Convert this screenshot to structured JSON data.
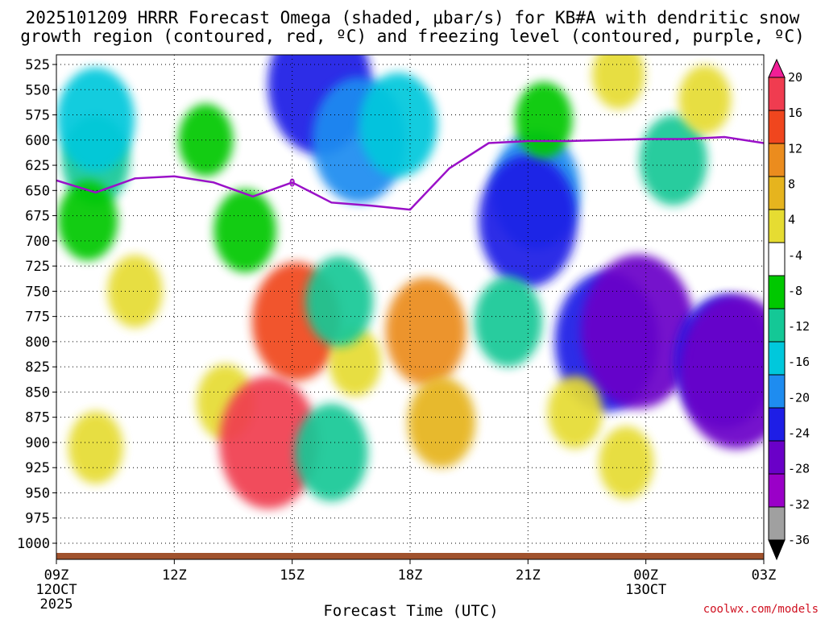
{
  "chart_data": {
    "type": "heatmap",
    "title_line1": "2025101209 HRRR Forecast Omega (shaded, μbar/s) for KB#A with dendritic snow",
    "title_line2": "growth region (contoured, red, ºC) and freezing level (contoured, purple, ºC)",
    "xlabel": "Forecast Time (UTC)",
    "credit": "coolwx.com/models",
    "y_axis": {
      "type": "pressure_mb",
      "ylim": [
        1000,
        525
      ],
      "ticks": [
        "525",
        "550",
        "575",
        "600",
        "625",
        "650",
        "675",
        "700",
        "725",
        "750",
        "775",
        "800",
        "825",
        "850",
        "875",
        "900",
        "925",
        "950",
        "975",
        "1000"
      ]
    },
    "x_axis": {
      "xlim_hours": [
        0,
        18
      ],
      "ticks": [
        {
          "hour": 0,
          "label": "09Z",
          "sub1": "12OCT",
          "sub2": "2025"
        },
        {
          "hour": 3,
          "label": "12Z",
          "sub1": "",
          "sub2": ""
        },
        {
          "hour": 6,
          "label": "15Z",
          "sub1": "",
          "sub2": ""
        },
        {
          "hour": 9,
          "label": "18Z",
          "sub1": "",
          "sub2": ""
        },
        {
          "hour": 12,
          "label": "21Z",
          "sub1": "",
          "sub2": ""
        },
        {
          "hour": 15,
          "label": "00Z",
          "sub1": "13OCT",
          "sub2": ""
        },
        {
          "hour": 18,
          "label": "03Z",
          "sub1": "",
          "sub2": ""
        }
      ]
    },
    "colorbar": {
      "levels": [
        -36,
        -32,
        -28,
        -24,
        -20,
        -16,
        -12,
        -8,
        -4,
        4,
        8,
        12,
        16,
        20
      ],
      "labels": [
        "20",
        "16",
        "12",
        "8",
        "4",
        "-4",
        "-8",
        "-12",
        "-16",
        "-20",
        "-24",
        "-28",
        "-32",
        "-36"
      ],
      "colors": [
        "#000000",
        "#a0a0a0",
        "#9a00c8",
        "#6a00c8",
        "#1e1ee6",
        "#1e8cf0",
        "#00c8dc",
        "#14c896",
        "#00c800",
        "#ffffff",
        "#e6dc32",
        "#e6b41e",
        "#eb8c1e",
        "#f0461e",
        "#f03c50",
        "#f01e96"
      ]
    },
    "freezing_level": {
      "label": "0",
      "points": [
        {
          "hour": 0.0,
          "p": 640
        },
        {
          "hour": 1.0,
          "p": 652
        },
        {
          "hour": 2.0,
          "p": 638
        },
        {
          "hour": 3.0,
          "p": 636
        },
        {
          "hour": 4.0,
          "p": 642
        },
        {
          "hour": 5.0,
          "p": 656
        },
        {
          "hour": 6.0,
          "p": 642
        },
        {
          "hour": 7.0,
          "p": 662
        },
        {
          "hour": 8.0,
          "p": 665
        },
        {
          "hour": 9.0,
          "p": 669
        },
        {
          "hour": 10.0,
          "p": 628
        },
        {
          "hour": 11.0,
          "p": 603
        },
        {
          "hour": 12.0,
          "p": 601
        },
        {
          "hour": 13.0,
          "p": 601
        },
        {
          "hour": 14.0,
          "p": 600
        },
        {
          "hour": 15.0,
          "p": 599
        },
        {
          "hour": 16.0,
          "p": 599
        },
        {
          "hour": 17.0,
          "p": 597
        },
        {
          "hour": 18.0,
          "p": 603
        }
      ]
    },
    "omega_regions": [
      {
        "hour": 1.0,
        "p": 620,
        "value": -10
      },
      {
        "hour": 1.0,
        "p": 580,
        "value": -14
      },
      {
        "hour": 0.8,
        "p": 680,
        "value": -7
      },
      {
        "hour": 1.0,
        "p": 905,
        "value": 5
      },
      {
        "hour": 2.0,
        "p": 750,
        "value": 5
      },
      {
        "hour": 4.8,
        "p": 690,
        "value": -8
      },
      {
        "hour": 3.8,
        "p": 600,
        "value": -5
      },
      {
        "hour": 4.3,
        "p": 860,
        "value": 6
      },
      {
        "hour": 6.1,
        "p": 780,
        "value": 18
      },
      {
        "hour": 5.4,
        "p": 900,
        "value": 22
      },
      {
        "hour": 6.7,
        "p": 545,
        "value": -24
      },
      {
        "hour": 7.7,
        "p": 600,
        "value": -20
      },
      {
        "hour": 8.7,
        "p": 585,
        "value": -14
      },
      {
        "hour": 7.6,
        "p": 820,
        "value": 4
      },
      {
        "hour": 7.2,
        "p": 760,
        "value": -10
      },
      {
        "hour": 7.0,
        "p": 910,
        "value": -12
      },
      {
        "hour": 9.4,
        "p": 790,
        "value": 15
      },
      {
        "hour": 9.8,
        "p": 880,
        "value": 10
      },
      {
        "hour": 12.2,
        "p": 650,
        "value": -18
      },
      {
        "hour": 12.0,
        "p": 680,
        "value": -22
      },
      {
        "hour": 11.5,
        "p": 780,
        "value": -10
      },
      {
        "hour": 14.0,
        "p": 800,
        "value": -24
      },
      {
        "hour": 14.8,
        "p": 790,
        "value": -28
      },
      {
        "hour": 17.0,
        "p": 820,
        "value": -22
      },
      {
        "hour": 17.3,
        "p": 830,
        "value": -28
      },
      {
        "hour": 15.7,
        "p": 620,
        "value": -10
      },
      {
        "hour": 12.4,
        "p": 580,
        "value": -6
      },
      {
        "hour": 14.5,
        "p": 920,
        "value": 5
      },
      {
        "hour": 13.2,
        "p": 870,
        "value": 5
      },
      {
        "hour": 16.5,
        "p": 560,
        "value": 4
      },
      {
        "hour": 14.3,
        "p": 535,
        "value": 4
      }
    ]
  }
}
